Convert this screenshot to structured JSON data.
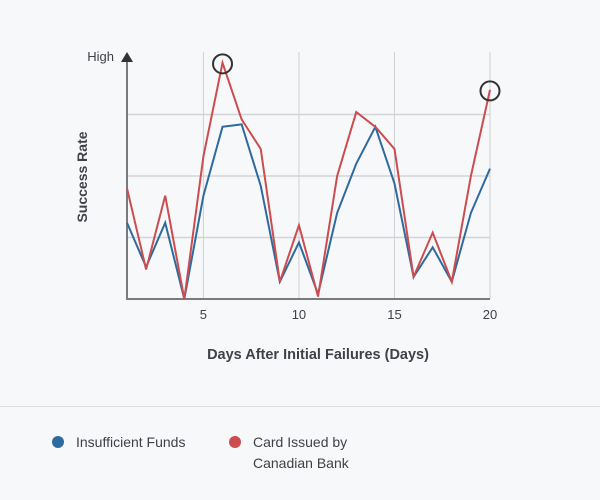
{
  "chart_data": {
    "type": "line",
    "title": "",
    "xlabel": "Days After Initial Failures (Days)",
    "ylabel": "Success Rate",
    "y_top_label": "High",
    "x": [
      1,
      2,
      3,
      4,
      5,
      6,
      7,
      8,
      9,
      10,
      11,
      12,
      13,
      14,
      15,
      16,
      17,
      18,
      19,
      20
    ],
    "x_ticks": [
      5,
      10,
      15,
      20
    ],
    "xlim": [
      1,
      20
    ],
    "ylim": [
      0,
      98
    ],
    "y_gridlines": [
      25,
      50,
      75
    ],
    "grid": true,
    "legend_position": "bottom",
    "series": [
      {
        "name": "Insufficient Funds",
        "color": "#2e6a9e",
        "values": [
          31,
          13,
          31,
          0,
          42,
          70,
          71,
          46,
          7,
          23,
          2,
          35,
          55,
          70,
          47,
          9,
          21,
          7,
          35,
          53
        ]
      },
      {
        "name": "Card Issued by Canadian Bank",
        "color": "#cc4c4f",
        "values": [
          45,
          12,
          42,
          0,
          58,
          96,
          73,
          61,
          7,
          30,
          1,
          50,
          76,
          70,
          61,
          9,
          27,
          7,
          50,
          85
        ]
      }
    ],
    "annotations": [
      {
        "type": "circle",
        "series": "Card Issued by Canadian Bank",
        "x": 6
      },
      {
        "type": "circle",
        "series": "Card Issued by Canadian Bank",
        "x": 20
      }
    ]
  },
  "legend": {
    "items": [
      {
        "label": "Insufficient Funds",
        "color": "#2e6a9e"
      },
      {
        "label": "Card Issued by\nCanadian Bank",
        "line1": "Card Issued by",
        "line2": "Canadian Bank",
        "color": "#cc4c4f"
      }
    ]
  }
}
